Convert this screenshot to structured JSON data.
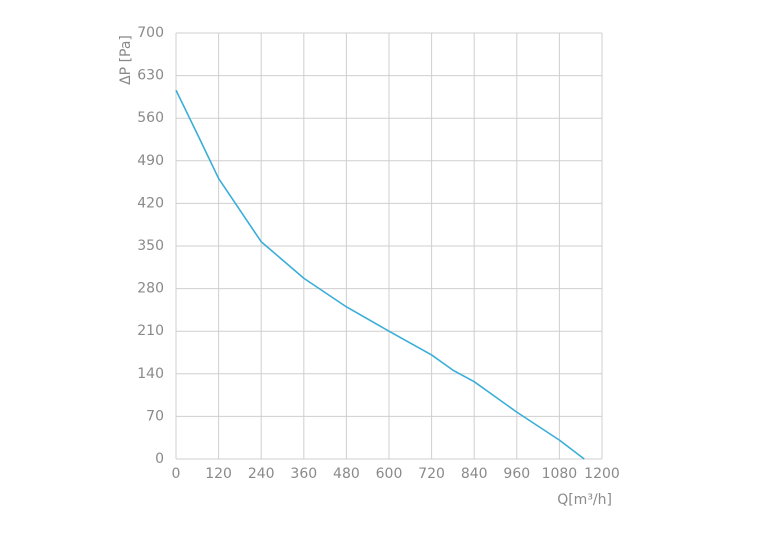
{
  "chart_data": {
    "type": "line",
    "x_label": "Q[m³/h]",
    "y_label": "ΔP [Pa]",
    "x": [
      0,
      60,
      120,
      240,
      360,
      480,
      600,
      720,
      780,
      840,
      960,
      1080,
      1150
    ],
    "series": [
      {
        "color": "#3aaed8",
        "values": [
          606,
          534,
          461,
          357,
          297,
          250,
          210,
          171,
          146,
          127,
          77,
          31,
          0
        ]
      }
    ],
    "xlim": [
      0,
      1200
    ],
    "xticks": [
      0,
      120,
      240,
      360,
      480,
      600,
      720,
      840,
      960,
      1080,
      1200
    ],
    "ylim": [
      0,
      700
    ],
    "yticks": [
      0,
      70,
      140,
      210,
      280,
      350,
      420,
      490,
      560,
      630,
      700
    ],
    "grid": true
  }
}
